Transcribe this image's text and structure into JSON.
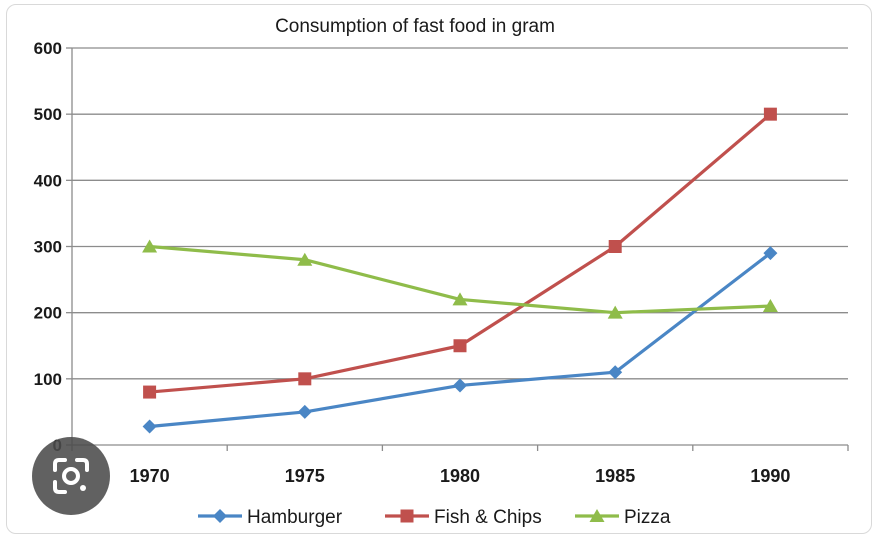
{
  "chart_data": {
    "type": "line",
    "title": "Consumption of fast food in gram",
    "xlabel": "",
    "ylabel": "",
    "categories": [
      "1970",
      "1975",
      "1980",
      "1985",
      "1990"
    ],
    "ylim": [
      0,
      600
    ],
    "yticks": [
      "0",
      "100",
      "200",
      "300",
      "400",
      "500",
      "600"
    ],
    "grid": true,
    "legend_position": "bottom",
    "series": [
      {
        "name": "Hamburger",
        "values": [
          28,
          50,
          90,
          110,
          290
        ],
        "color": "#4a86c5",
        "marker": "diamond"
      },
      {
        "name": "Fish & Chips",
        "values": [
          80,
          100,
          150,
          300,
          500
        ],
        "color": "#c0504d",
        "marker": "square"
      },
      {
        "name": "Pizza",
        "values": [
          300,
          280,
          220,
          200,
          210
        ],
        "color": "#8fbc4a",
        "marker": "triangle"
      }
    ]
  },
  "overlay": {
    "icon": "google-lens-icon"
  }
}
